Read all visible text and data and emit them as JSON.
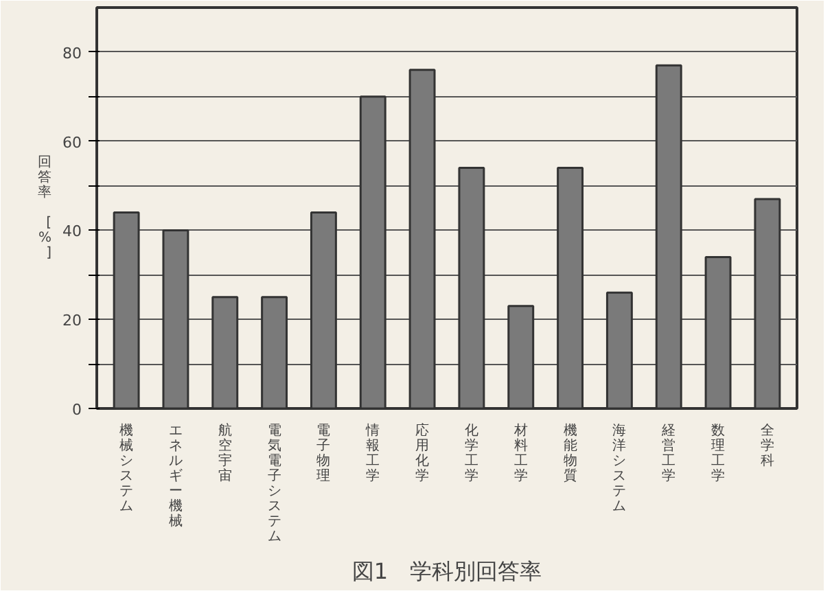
{
  "chart_data": {
    "type": "bar",
    "title": "図1　学科別回答率",
    "ylabel": "回答率 [%]",
    "categories": [
      "機械システム",
      "エネルギー機械",
      "航空宇宙",
      "電気電子システム",
      "電子物理",
      "情報工学",
      "応用化学",
      "化学工学",
      "材料工学",
      "機能物質",
      "海洋システム",
      "経営工学",
      "数理工学",
      "全学科"
    ],
    "values": [
      44,
      40,
      25,
      25,
      44,
      70,
      76,
      54,
      23,
      54,
      26,
      77,
      34,
      47
    ],
    "color": "#7a7a7a",
    "ylim": [
      0,
      90
    ],
    "yticks": [
      0,
      {
        "value": 10,
        "label": null
      },
      20,
      {
        "value": 30,
        "label": null
      },
      40,
      {
        "value": 50,
        "label": null
      },
      60,
      {
        "value": 70,
        "label": null
      },
      80
    ],
    "grid": "y"
  }
}
